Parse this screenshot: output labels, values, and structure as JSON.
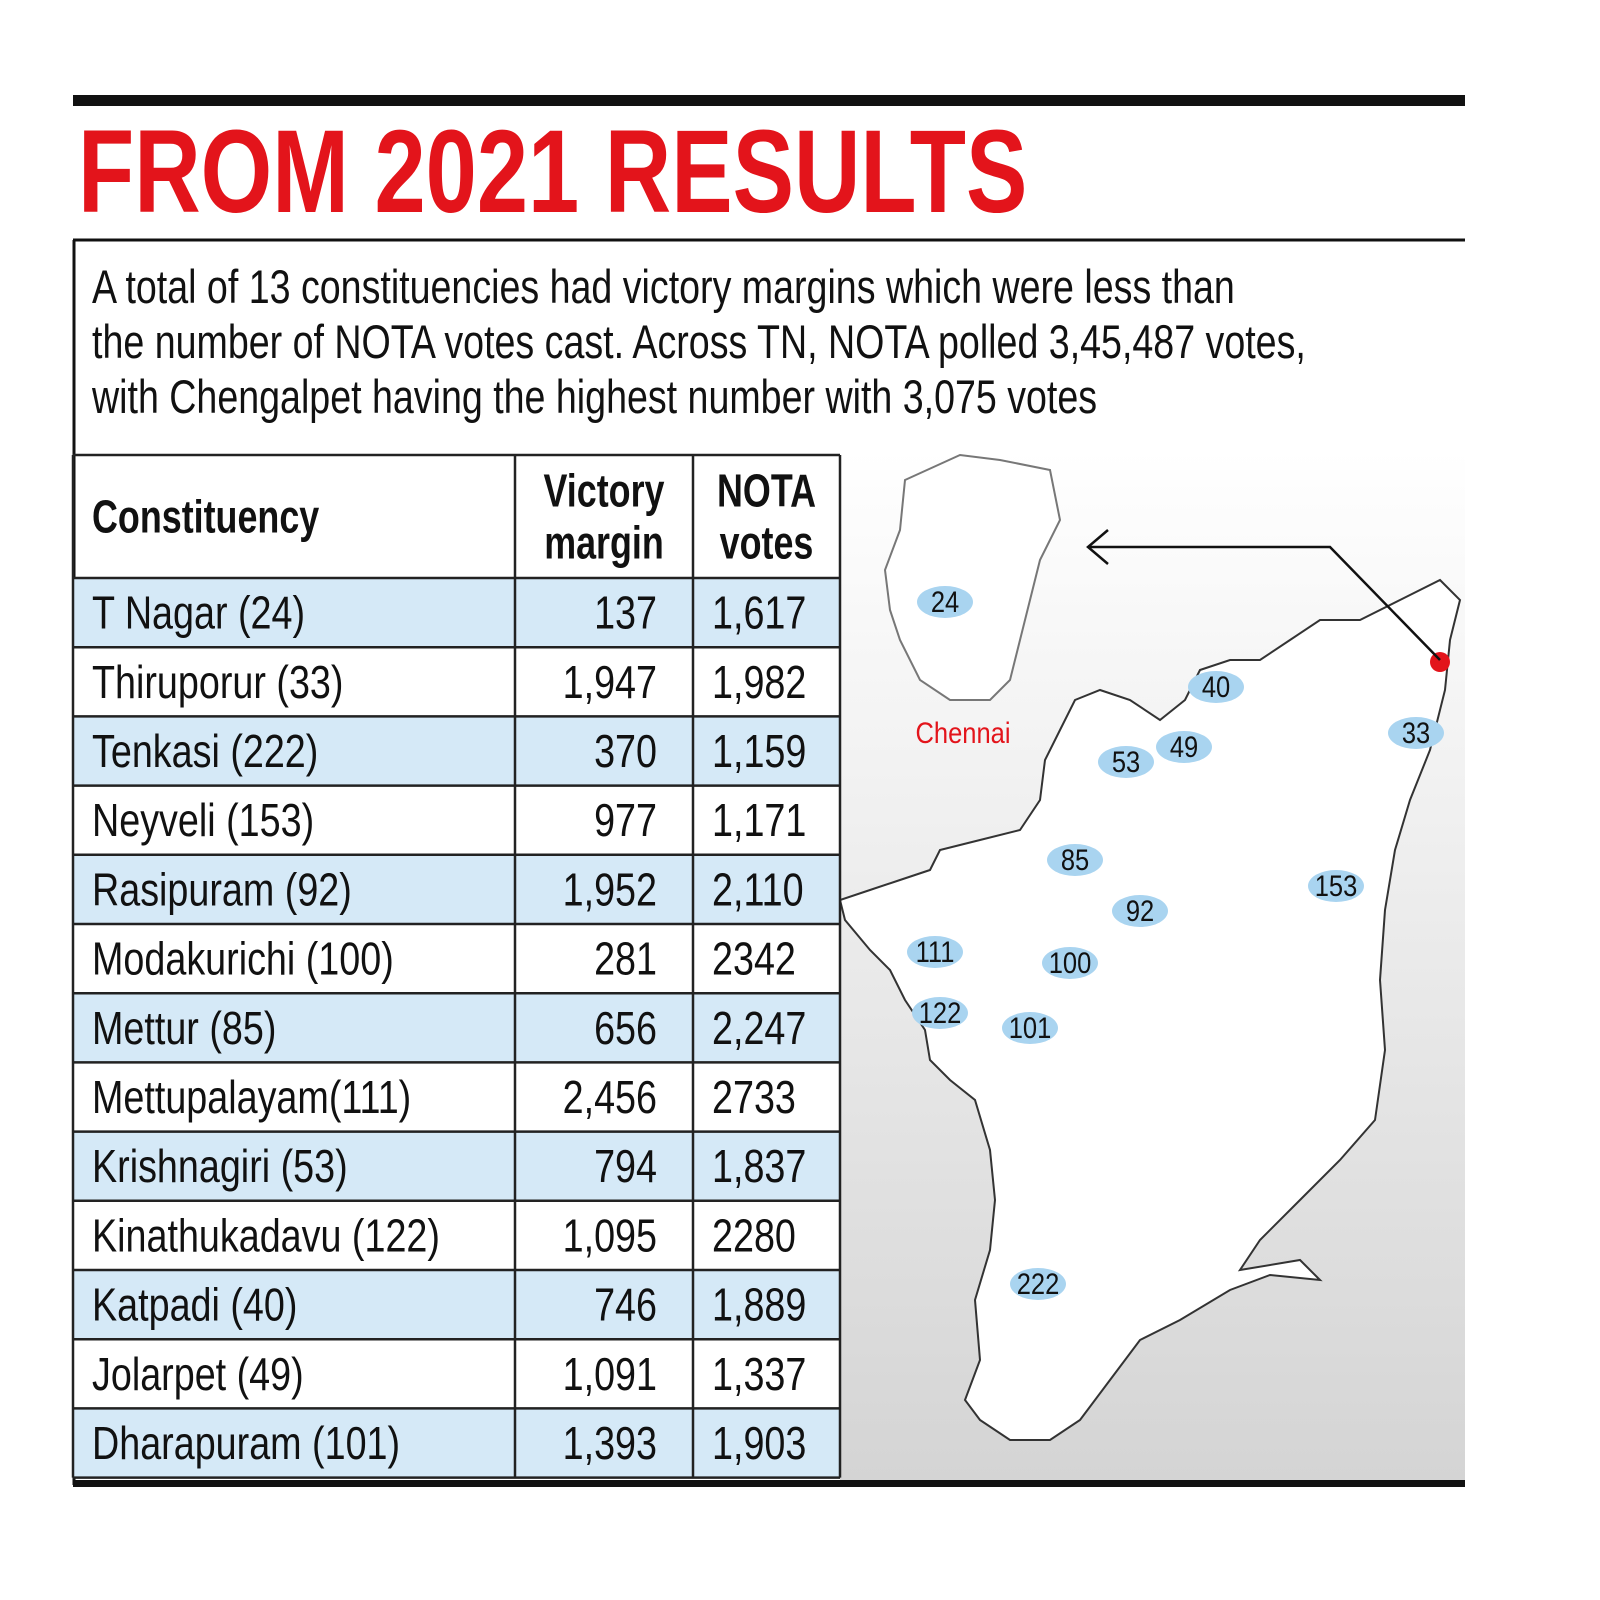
{
  "header": {
    "title": "FROM 2021 RESULTS"
  },
  "intro": [
    "A total of 13 constituencies had victory margins which were less than",
    "the number of NOTA votes cast. Across TN, NOTA polled 3,45,487 votes,",
    "with Chengalpet having the highest number with 3,075 votes"
  ],
  "table": {
    "columns": [
      [
        "Constituency"
      ],
      [
        "Victory",
        "margin"
      ],
      [
        "NOTA",
        "votes"
      ]
    ],
    "rows": [
      [
        "T Nagar (24)",
        "137",
        "1,617"
      ],
      [
        "Thiruporur (33)",
        "1,947",
        "1,982"
      ],
      [
        "Tenkasi (222)",
        "370",
        "1,159"
      ],
      [
        "Neyveli (153)",
        "977",
        "1,171"
      ],
      [
        "Rasipuram (92)",
        "1,952",
        "2,110"
      ],
      [
        "Modakurichi (100)",
        "281",
        "2342"
      ],
      [
        "Mettur (85)",
        "656",
        "2,247"
      ],
      [
        "Mettupalayam(111)",
        "2,456",
        "2733"
      ],
      [
        "Krishnagiri (53)",
        "794",
        "1,837"
      ],
      [
        "Kinathukadavu (122)",
        "1,095",
        "2280"
      ],
      [
        "Katpadi (40)",
        "746",
        "1,889"
      ],
      [
        "Jolarpet (49)",
        "1,091",
        "1,337"
      ],
      [
        "Dharapuram (101)",
        "1,393",
        "1,903"
      ]
    ]
  },
  "map": {
    "labels": [
      "24",
      "40",
      "33",
      "53",
      "49",
      "85",
      "153",
      "92",
      "111",
      "100",
      "122",
      "101",
      "222"
    ],
    "inset_label": "Chennai"
  }
}
